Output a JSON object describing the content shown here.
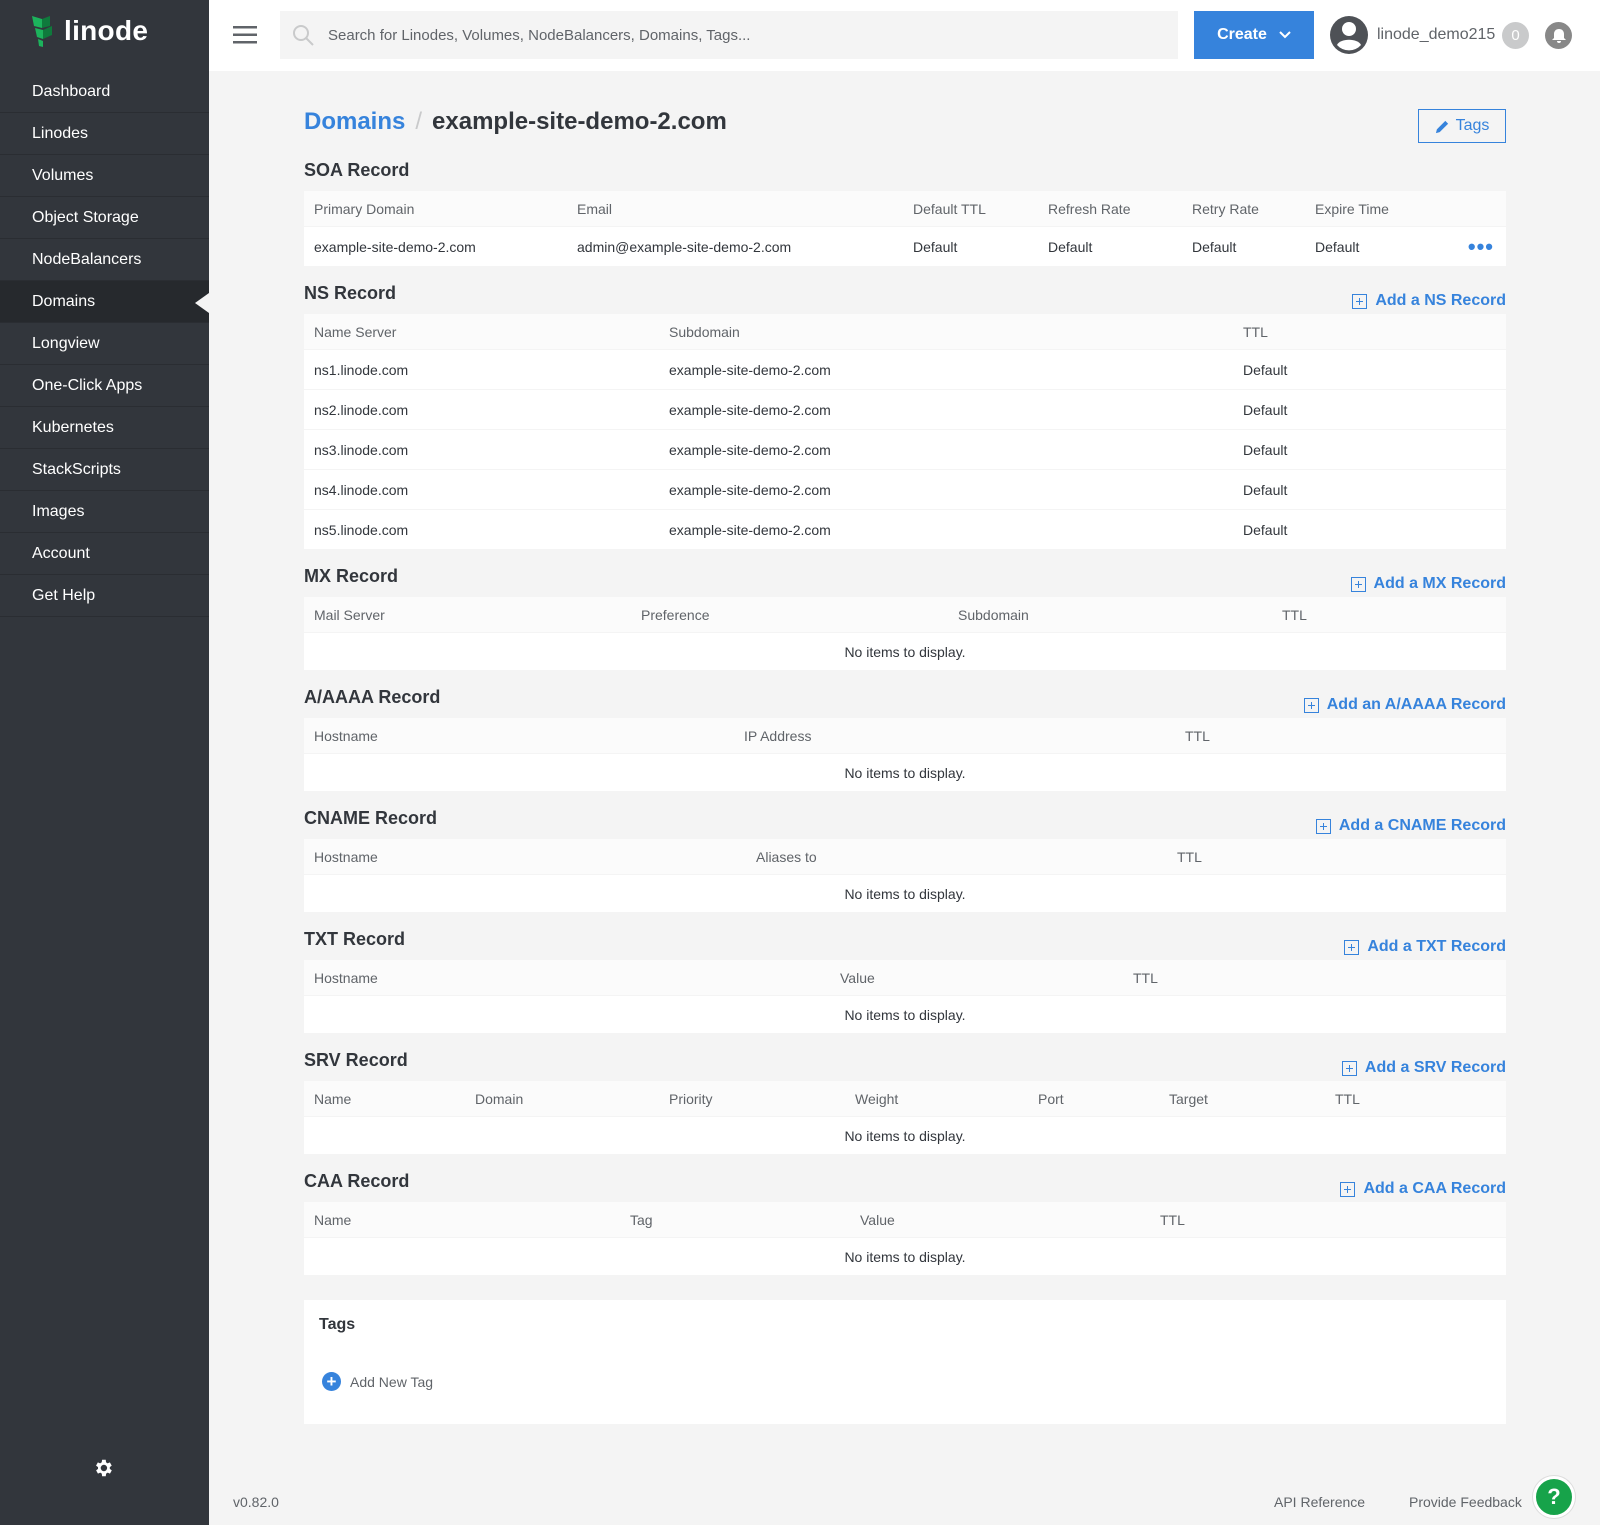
{
  "brand": {
    "name": "linode",
    "accent": "#3683dc",
    "logo_green": "#1cb35c"
  },
  "sidebar": {
    "items": [
      {
        "label": "Dashboard"
      },
      {
        "label": "Linodes"
      },
      {
        "label": "Volumes"
      },
      {
        "label": "Object Storage"
      },
      {
        "label": "NodeBalancers"
      },
      {
        "label": "Domains",
        "active": true
      },
      {
        "label": "Longview"
      },
      {
        "label": "One-Click Apps"
      },
      {
        "label": "Kubernetes"
      },
      {
        "label": "StackScripts"
      },
      {
        "label": "Images"
      },
      {
        "label": "Account"
      },
      {
        "label": "Get Help"
      }
    ],
    "settings_icon": "gear-icon"
  },
  "header": {
    "search_placeholder": "Search for Linodes, Volumes, NodeBalancers, Domains, Tags...",
    "create_label": "Create",
    "username": "linode_demo215",
    "notification_count": "0"
  },
  "breadcrumb": {
    "parent": "Domains",
    "current": "example-site-demo-2.com"
  },
  "tags_button": "Tags",
  "sections": [
    {
      "title": "SOA Record",
      "add": "",
      "cols": "263px 336px 135px 144px 123px 1fr 60px",
      "headers": [
        "Primary Domain",
        "Email",
        "Default TTL",
        "Refresh Rate",
        "Retry Rate",
        "Expire Time",
        ""
      ],
      "rows": [
        [
          "example-site-demo-2.com",
          "admin@example-site-demo-2.com",
          "Default",
          "Default",
          "Default",
          "Default",
          "•••"
        ]
      ]
    },
    {
      "title": "NS Record",
      "add": "Add a NS Record",
      "cols": "355px 574px 1fr",
      "headers": [
        "Name Server",
        "Subdomain",
        "TTL"
      ],
      "rows": [
        [
          "ns1.linode.com",
          "example-site-demo-2.com",
          "Default"
        ],
        [
          "ns2.linode.com",
          "example-site-demo-2.com",
          "Default"
        ],
        [
          "ns3.linode.com",
          "example-site-demo-2.com",
          "Default"
        ],
        [
          "ns4.linode.com",
          "example-site-demo-2.com",
          "Default"
        ],
        [
          "ns5.linode.com",
          "example-site-demo-2.com",
          "Default"
        ]
      ]
    },
    {
      "title": "MX Record",
      "add": "Add a MX Record",
      "cols": "327px 317px 324px 1fr",
      "headers": [
        "Mail Server",
        "Preference",
        "Subdomain",
        "TTL"
      ],
      "rows": []
    },
    {
      "title": "A/AAAA Record",
      "add": "Add an A/AAAA Record",
      "cols": "430px 441px 1fr",
      "headers": [
        "Hostname",
        "IP Address",
        "TTL"
      ],
      "rows": []
    },
    {
      "title": "CNAME Record",
      "add": "Add a CNAME Record",
      "cols": "442px 421px 1fr",
      "headers": [
        "Hostname",
        "Aliases to",
        "TTL"
      ],
      "rows": []
    },
    {
      "title": "TXT Record",
      "add": "Add a TXT Record",
      "cols": "526px 293px 1fr",
      "headers": [
        "Hostname",
        "Value",
        "TTL"
      ],
      "rows": []
    },
    {
      "title": "SRV Record",
      "add": "Add a SRV Record",
      "cols": "161px 194px 186px 183px 131px 166px 1fr",
      "headers": [
        "Name",
        "Domain",
        "Priority",
        "Weight",
        "Port",
        "Target",
        "TTL"
      ],
      "rows": []
    },
    {
      "title": "CAA Record",
      "add": "Add a CAA Record",
      "cols": "316px 230px 300px 1fr",
      "headers": [
        "Name",
        "Tag",
        "Value",
        "TTL"
      ],
      "rows": []
    }
  ],
  "empty_text": "No items to display.",
  "tags_card": {
    "title": "Tags",
    "add_label": "Add New Tag"
  },
  "footer": {
    "version": "v0.82.0",
    "api_reference": "API Reference",
    "feedback": "Provide Feedback"
  }
}
